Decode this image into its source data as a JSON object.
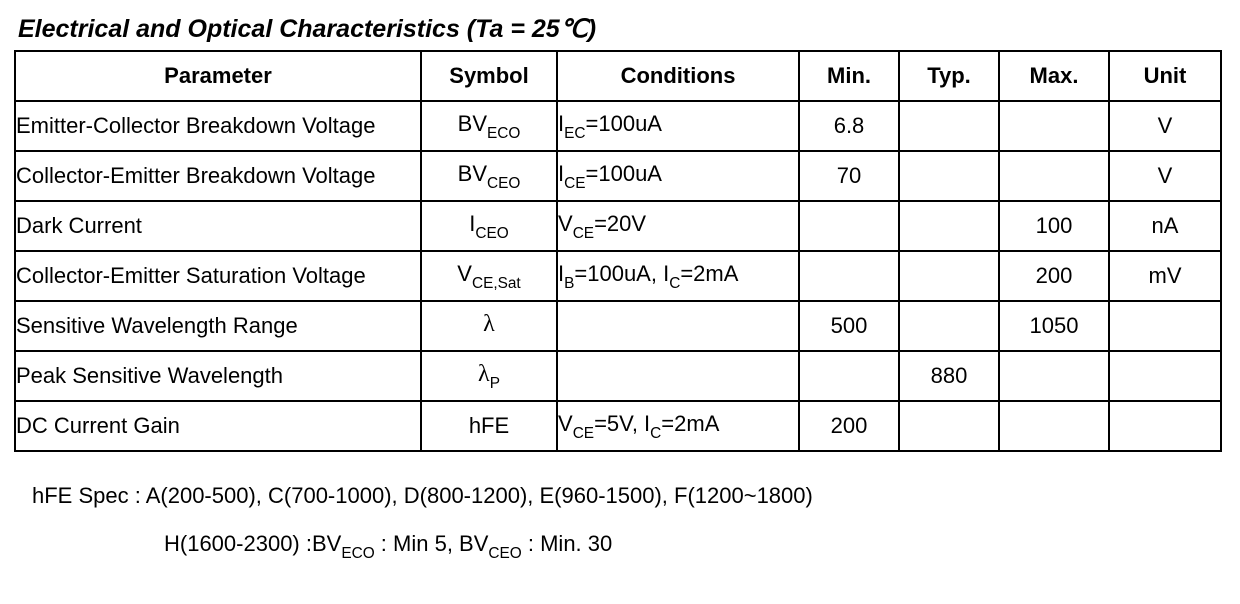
{
  "title_pre": "Electrical and Optical Characteristics (Ta = 25",
  "title_deg": "℃",
  "title_post": ")",
  "columns": {
    "param": "Parameter",
    "symbol": "Symbol",
    "conditions": "Conditions",
    "min": "Min.",
    "typ": "Typ.",
    "max": "Max.",
    "unit": "Unit"
  },
  "rows": [
    {
      "param": "Emitter-Collector Breakdown Voltage",
      "sym_main": "BV",
      "sym_sub": "ECO",
      "cond_pre": "I",
      "cond_sub": "EC",
      "cond_post": "=100uA",
      "min": "6.8",
      "typ": "",
      "max": "",
      "unit": "V"
    },
    {
      "param": "Collector-Emitter Breakdown Voltage",
      "sym_main": "BV",
      "sym_sub": "CEO",
      "cond_pre": "I",
      "cond_sub": "CE",
      "cond_post": "=100uA",
      "min": "70",
      "typ": "",
      "max": "",
      "unit": "V"
    },
    {
      "param": "Dark Current",
      "sym_main": "I",
      "sym_sub": "CEO",
      "cond_pre": "V",
      "cond_sub": "CE",
      "cond_post": "=20V",
      "min": "",
      "typ": "",
      "max": "100",
      "unit": "nA"
    },
    {
      "param": "Collector-Emitter Saturation Voltage",
      "sym_main": "V",
      "sym_sub": "CE,Sat",
      "cond2_a_pre": "I",
      "cond2_a_sub": "B",
      "cond2_a_post": "=100uA, ",
      "cond2_b_pre": "I",
      "cond2_b_sub": "C",
      "cond2_b_post": "=2mA",
      "min": "",
      "typ": "",
      "max": "200",
      "unit": "mV"
    },
    {
      "param": "Sensitive Wavelength Range",
      "sym_lambda": "λ",
      "sym_sub": "",
      "min": "500",
      "typ": "",
      "max": "1050",
      "unit": ""
    },
    {
      "param": "Peak Sensitive Wavelength",
      "sym_lambda": "λ",
      "sym_sub": "P",
      "min": "",
      "typ": "880",
      "max": "",
      "unit": ""
    },
    {
      "param": "DC Current Gain",
      "sym_plain": "hFE",
      "cond2_a_pre": "V",
      "cond2_a_sub": "CE",
      "cond2_a_post": "=5V, ",
      "cond2_b_pre": "I",
      "cond2_b_sub": "C",
      "cond2_b_post": "=2mA",
      "min": "200",
      "typ": "",
      "max": "",
      "unit": ""
    }
  ],
  "notes": {
    "line1": "hFE Spec  : A(200-500), C(700-1000), D(800-1200), E(960-1500),  F(1200~1800)",
    "line2_a": "H(1600-2300) :BV",
    "line2_a_sub": "ECO",
    "line2_b": " : Min 5, BV",
    "line2_b_sub": "CEO",
    "line2_c": " : Min. 30"
  }
}
